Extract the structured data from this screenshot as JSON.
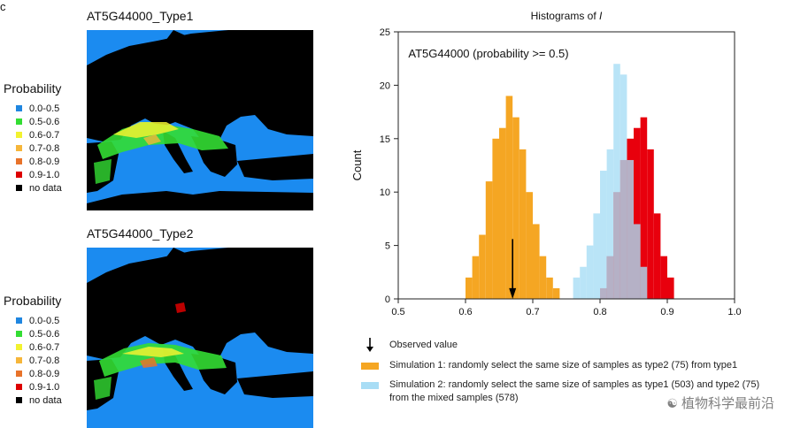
{
  "figure": {
    "panel_letter": "c"
  },
  "maps": [
    {
      "title": "AT5G44000_Type1"
    },
    {
      "title": "AT5G44000_Type2"
    }
  ],
  "legend": {
    "title": "Probability",
    "items": [
      {
        "label": "0.0-0.5",
        "color": "#1f86e0"
      },
      {
        "label": "0.5-0.6",
        "color": "#33dd33"
      },
      {
        "label": "0.6-0.7",
        "color": "#f2f230"
      },
      {
        "label": "0.7-0.8",
        "color": "#f6b63a"
      },
      {
        "label": "0.8-0.9",
        "color": "#e8732a"
      },
      {
        "label": "0.9-1.0",
        "color": "#dd0000"
      },
      {
        "label": "no data",
        "color": "#000000"
      }
    ]
  },
  "map_colors": {
    "sea": "#1b8bf0",
    "land": "#000000"
  },
  "chart_data": {
    "type": "bar",
    "title": "Histograms of I",
    "annotation": "AT5G44000 (probability >= 0.5)",
    "xlabel": "",
    "ylabel": "Count",
    "xlim": [
      0.5,
      1.0
    ],
    "ylim": [
      0,
      25
    ],
    "xticks": [
      "0.5",
      "0.6",
      "0.7",
      "0.8",
      "0.9",
      "1.0"
    ],
    "yticks": [
      "0",
      "5",
      "10",
      "15",
      "20",
      "25"
    ],
    "bin_width": 0.01,
    "observed_value": 0.67,
    "series": [
      {
        "name": "Simulation 1: randomly select the same size of samples as type2 (75) from type1",
        "color": "#f5a623",
        "bin_starts": [
          0.6,
          0.61,
          0.62,
          0.63,
          0.64,
          0.65,
          0.66,
          0.67,
          0.68,
          0.69,
          0.7,
          0.71,
          0.72,
          0.73
        ],
        "counts": [
          2,
          4,
          6,
          11,
          15,
          16,
          19,
          17,
          14,
          10,
          7,
          4,
          2,
          1
        ]
      },
      {
        "name": "Simulation 2: randomly select the same size of samples as type1 (503) and type2 (75) from the mixed samples (578)",
        "color": "#a8ddf5",
        "bin_starts": [
          0.76,
          0.77,
          0.78,
          0.79,
          0.8,
          0.81,
          0.82,
          0.83,
          0.84,
          0.85,
          0.86
        ],
        "counts": [
          2,
          3,
          5,
          8,
          12,
          14,
          22,
          21,
          13,
          7,
          3
        ]
      },
      {
        "name": "",
        "color": "#e8000d",
        "bin_starts": [
          0.8,
          0.81,
          0.82,
          0.83,
          0.84,
          0.85,
          0.86,
          0.87,
          0.88,
          0.89,
          0.9
        ],
        "counts": [
          1,
          4,
          10,
          13,
          15,
          16,
          17,
          14,
          8,
          4,
          2
        ]
      }
    ]
  },
  "bottom_legend": {
    "observed_label": "Observed value",
    "sim1_label": "Simulation 1: randomly select the same size of samples as type2 (75) from type1",
    "sim2_line1": "Simulation 2: randomly select the same size of samples as type1 (503) and type2 (75)",
    "sim2_line2": "from the mixed samples (578)"
  },
  "watermark": {
    "text": "植物科学最前沿"
  }
}
